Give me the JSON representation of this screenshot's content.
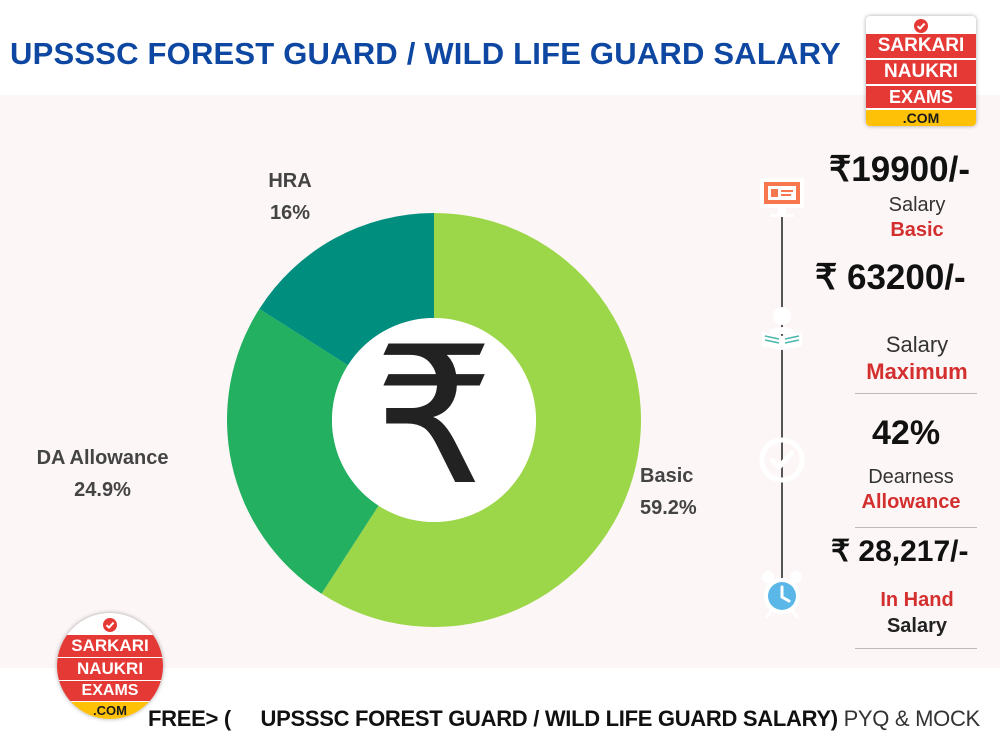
{
  "header": {
    "title": "UPSSSC FOREST GUARD / WILD LIFE GUARD SALARY"
  },
  "logo": {
    "line1": "SARKARI",
    "line2": "NAUKRI",
    "line3": "EXAMS",
    "line4": ".COM"
  },
  "chart_data": {
    "type": "pie",
    "donut": true,
    "center_symbol": "₹",
    "categories": [
      "Basic",
      "DA Allowance",
      "HRA"
    ],
    "values": [
      59.2,
      24.9,
      16
    ],
    "value_labels": [
      "59.2%",
      "24.9%",
      "16%"
    ],
    "colors": [
      "#9cd649",
      "#23b060",
      "#008f7e"
    ]
  },
  "stats": [
    {
      "value": "₹19900/-",
      "line1": "Salary",
      "line2": "Basic",
      "icon": "monitor-icon",
      "color": "#f7784f"
    },
    {
      "value": "₹ 63200/-",
      "line1": "Salary",
      "line2": "Maximum",
      "icon": "reader-icon",
      "color": "#4db6ac"
    },
    {
      "value": "42%",
      "line1": "Dearness",
      "line2": "Allowance",
      "icon": "check-icon",
      "color": "#e35d5d"
    },
    {
      "value": "₹  28,217/-",
      "line1": "In Hand",
      "line2": "Salary",
      "icon": "alarm-clock-icon",
      "color": "#5bb7e8"
    }
  ],
  "footer": {
    "prefix": "FREE> (",
    "title": "UPSSSC FOREST GUARD / WILD LIFE GUARD SALARY)",
    "suffix": "PYQ & MOCK"
  }
}
